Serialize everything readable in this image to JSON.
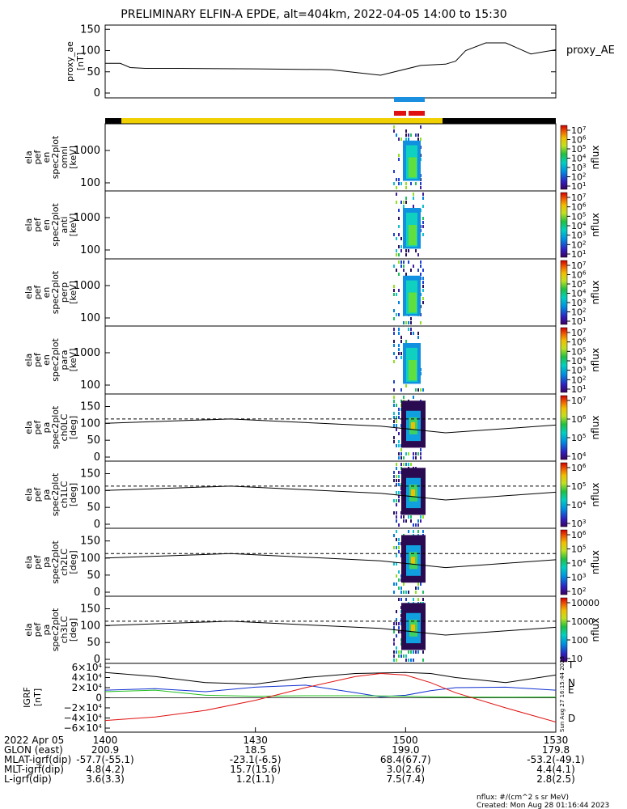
{
  "title": "PRELIMINARY ELFIN-A EPDE, alt=404km, 2022-04-05 14:00 to 15:30",
  "top_panel": {
    "ylabel_lines": [
      "proxy_ae",
      "[nT]"
    ],
    "series_label": "proxy_AE",
    "yticks": [
      "150",
      "100",
      "50",
      "0"
    ],
    "ylim": [
      0,
      160
    ]
  },
  "spec_panels": [
    {
      "ylabel_lines": [
        "ela",
        "pef",
        "en",
        "spec2plot",
        "omni",
        "[keV]"
      ],
      "yticks": [
        "1000",
        "100"
      ],
      "cbar_ticks": [
        "10^7",
        "10^6",
        "10^5",
        "10^4",
        "10^3",
        "10^2",
        "10^1"
      ],
      "cbar_label": "nflux"
    },
    {
      "ylabel_lines": [
        "ela",
        "pef",
        "en",
        "spec2plot",
        "anti",
        "[keV]"
      ],
      "yticks": [
        "1000",
        "100"
      ],
      "cbar_ticks": [
        "10^7",
        "10^6",
        "10^5",
        "10^4",
        "10^3",
        "10^2",
        "10^1"
      ],
      "cbar_label": "nflux"
    },
    {
      "ylabel_lines": [
        "ela",
        "pef",
        "en",
        "spec2plot",
        "perp",
        "[keV]"
      ],
      "yticks": [
        "1000",
        "100"
      ],
      "cbar_ticks": [
        "10^7",
        "10^6",
        "10^5",
        "10^4",
        "10^3",
        "10^2",
        "10^1"
      ],
      "cbar_label": "nflux"
    },
    {
      "ylabel_lines": [
        "ela",
        "pef",
        "en",
        "spec2plot",
        "para",
        "[keV]"
      ],
      "yticks": [
        "1000",
        "100"
      ],
      "cbar_ticks": [
        "10^7",
        "10^6",
        "10^5",
        "10^4",
        "10^3",
        "10^2",
        "10^1"
      ],
      "cbar_label": "nflux"
    }
  ],
  "pa_panels": [
    {
      "ylabel_lines": [
        "ela",
        "pef",
        "pa",
        "spec2plot",
        "ch0LC",
        "[deg]"
      ],
      "yticks": [
        "150",
        "100",
        "50",
        "0"
      ],
      "cbar_ticks": [
        "10^7",
        "10^6",
        "10^5",
        "10^4"
      ],
      "cbar_label": "nflux"
    },
    {
      "ylabel_lines": [
        "ela",
        "pef",
        "pa",
        "spec2plot",
        "ch1LC",
        "[deg]"
      ],
      "yticks": [
        "150",
        "100",
        "50",
        "0"
      ],
      "cbar_ticks": [
        "10^6",
        "10^5",
        "10^4",
        "10^3"
      ],
      "cbar_label": "nflux"
    },
    {
      "ylabel_lines": [
        "ela",
        "pef",
        "pa",
        "spec2plot",
        "ch2LC",
        "[deg]"
      ],
      "yticks": [
        "150",
        "100",
        "50",
        "0"
      ],
      "cbar_ticks": [
        "10^6",
        "10^5",
        "10^4",
        "10^3",
        "10^2"
      ],
      "cbar_label": "nflux"
    },
    {
      "ylabel_lines": [
        "ela",
        "pef",
        "pa",
        "spec2plot",
        "ch3LC",
        "[deg]"
      ],
      "yticks": [
        "150",
        "100",
        "50",
        "0"
      ],
      "cbar_ticks": [
        "10000",
        "1000",
        "100",
        "10"
      ],
      "cbar_label": "nflux"
    }
  ],
  "igrf_panel": {
    "ylabel_lines": [
      "IGRF",
      "[nT]"
    ],
    "yticks": [
      "6×10^4",
      "4×10^4",
      "2×10^4",
      "0",
      "−2×10^4",
      "−4×10^4",
      "−6×10^4"
    ],
    "legend": [
      "T",
      "N",
      "E",
      "D"
    ],
    "colors": {
      "T": "#000000",
      "N": "#1030d0",
      "E": "#20c020",
      "D": "#e01010"
    },
    "stamp": "Sun Aug 27 16:15:44 2023"
  },
  "ephemeris": {
    "row_labels": [
      "2022 Apr 05",
      "GLON (east)",
      "MLAT-igrf(dip)",
      "MLT-igrf(dip)",
      "L-igrf(dip)"
    ],
    "columns": [
      {
        "tick": "1400",
        "values": [
          "200.9",
          "-57.7(-55.1)",
          "4.8(4.2)",
          "3.6(3.3)"
        ]
      },
      {
        "tick": "1430",
        "values": [
          "18.5",
          "-23.1(-6.5)",
          "15.7(15.6)",
          "1.2(1.1)"
        ]
      },
      {
        "tick": "1500",
        "values": [
          "199.0",
          "68.4(67.7)",
          "3.0(2.6)",
          "7.5(7.4)"
        ]
      },
      {
        "tick": "1530",
        "values": [
          "179.8",
          "-53.2(-49.1)",
          "4.4(4.1)",
          "2.8(2.5)"
        ]
      }
    ]
  },
  "footer": {
    "units": "nflux: #/(cm^2 s sr MeV)",
    "created": "Created: Mon Aug 28 01:16:44 2023"
  },
  "colors": {
    "science_bar": "#f0d000",
    "orbit_bar": "#000000",
    "blue_marker": "#1a8fe0",
    "red_marker": "#e01010"
  },
  "chart_data": {
    "type": "line",
    "time_range": [
      "14:00",
      "15:30"
    ],
    "proxy_ae": {
      "x_minutes_after_1400": [
        0,
        3,
        5,
        8,
        15,
        30,
        45,
        55,
        63,
        68,
        70,
        72,
        76,
        80,
        85,
        90
      ],
      "y_nT": [
        70,
        70,
        60,
        58,
        58,
        57,
        55,
        42,
        65,
        68,
        75,
        100,
        118,
        118,
        92,
        102
      ]
    },
    "igrf": {
      "x_minutes_after_1400": [
        0,
        10,
        20,
        30,
        40,
        50,
        55,
        60,
        65,
        70,
        80,
        90
      ],
      "series": [
        {
          "name": "T",
          "values": [
            50000,
            42000,
            30000,
            27000,
            40000,
            48000,
            49000,
            50000,
            48000,
            40000,
            30000,
            45000
          ]
        },
        {
          "name": "N",
          "values": [
            15000,
            18000,
            12000,
            21000,
            25000,
            10000,
            2000,
            5000,
            14000,
            20000,
            21000,
            15000
          ]
        },
        {
          "name": "E",
          "values": [
            12000,
            15000,
            5000,
            3000,
            4000,
            4000,
            3500,
            3000,
            2000,
            1500,
            1200,
            1500
          ]
        },
        {
          "name": "D",
          "values": [
            -45000,
            -38000,
            -25000,
            -5000,
            20000,
            42000,
            48000,
            45000,
            30000,
            10000,
            -20000,
            -48000
          ]
        }
      ]
    }
  }
}
